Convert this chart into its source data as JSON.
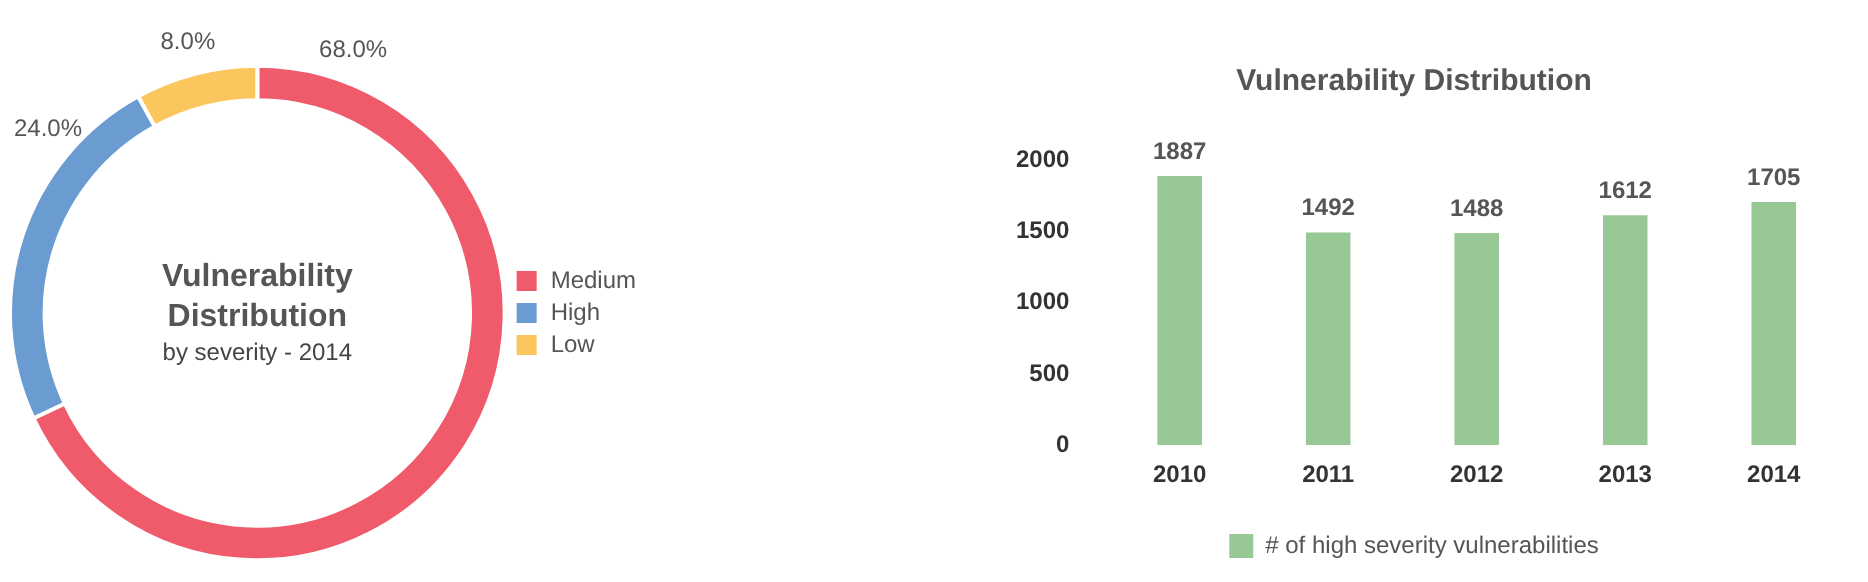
{
  "chart_data": [
    {
      "type": "donut",
      "title": "Vulnerability Distribution",
      "subtitle": "by severity - 2014",
      "categories": [
        "Medium",
        "High",
        "Low"
      ],
      "values": [
        68,
        24,
        8
      ],
      "value_labels": [
        "68.0%",
        "24.0%",
        "8.0%"
      ],
      "colors": [
        "#ef5b6a",
        "#6a9bd1",
        "#fcc65e"
      ],
      "legend": "right"
    },
    {
      "type": "bar",
      "title": "Vulnerability Distribution",
      "categories": [
        "2010",
        "2011",
        "2012",
        "2013",
        "2014"
      ],
      "series": [
        {
          "name": "# of high severity vulnerabilities",
          "color": "#98c994",
          "values": [
            1887,
            1492,
            1488,
            1612,
            1705
          ]
        }
      ],
      "ylim": [
        0,
        2000
      ],
      "yticks": [
        0,
        500,
        1000,
        1500,
        2000
      ],
      "grid": false,
      "legend": "bottom",
      "data_labels": true
    }
  ]
}
